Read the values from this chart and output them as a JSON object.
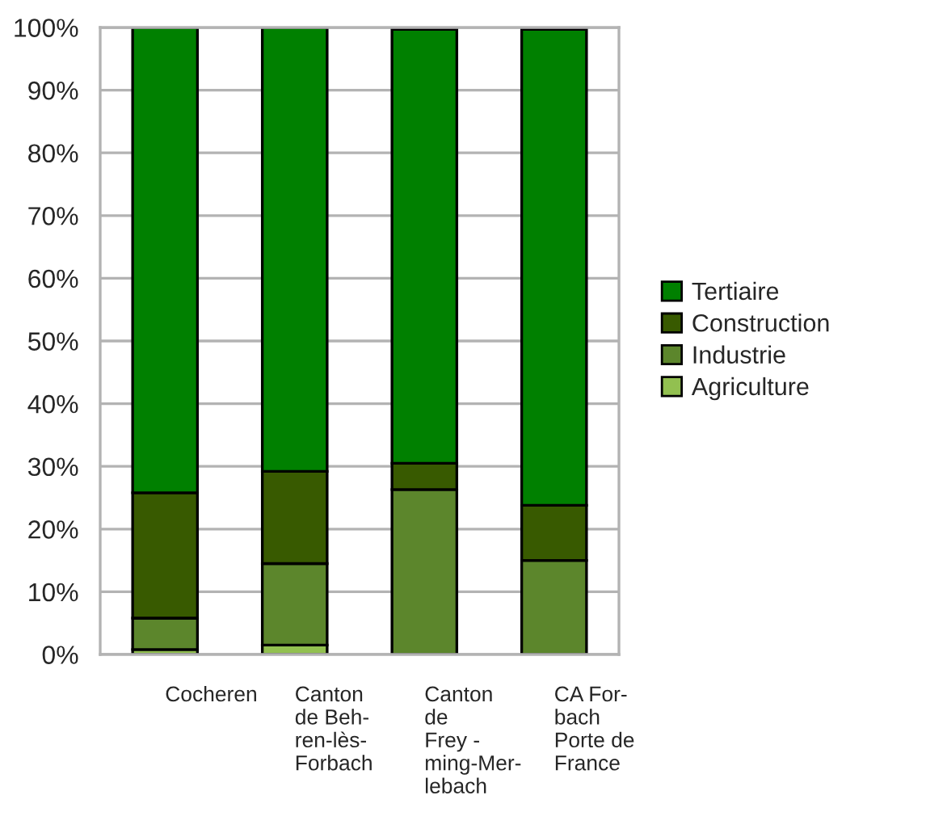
{
  "chart_data": {
    "type": "bar",
    "stacked": true,
    "categories": [
      "Cocheren",
      "Canton\nde Beh-\nren-lès-\nForbach",
      "Canton\nde\nFrey -\nming-Mer-\nlebach",
      "CA For-\nbach\nPorte de\nFrance"
    ],
    "series": [
      {
        "name": "Agriculture",
        "color": "#92c050",
        "values": [
          0.8,
          1.5,
          null,
          null
        ]
      },
      {
        "name": "Industrie",
        "color": "#5c862c",
        "values": [
          5.0,
          13.0,
          26.3,
          15.0
        ]
      },
      {
        "name": "Construction",
        "color": "#385a00",
        "values": [
          20.0,
          14.7,
          4.2,
          8.8
        ]
      },
      {
        "name": "Tertiaire",
        "color": "#008000",
        "values": [
          74.2,
          70.8,
          69.2,
          75.9
        ]
      }
    ],
    "ylim": [
      0,
      100
    ],
    "yticks": [
      {
        "value": 0,
        "label": "0%"
      },
      {
        "value": 10,
        "label": "10%"
      },
      {
        "value": 20,
        "label": "20%"
      },
      {
        "value": 30,
        "label": "30%"
      },
      {
        "value": 40,
        "label": "40%"
      },
      {
        "value": 50,
        "label": "50%"
      },
      {
        "value": 60,
        "label": "60%"
      },
      {
        "value": 70,
        "label": "70%"
      },
      {
        "value": 80,
        "label": "80%"
      },
      {
        "value": 90,
        "label": "90%"
      },
      {
        "value": 100,
        "label": "100%"
      }
    ],
    "grid": "y",
    "legend": "right"
  }
}
